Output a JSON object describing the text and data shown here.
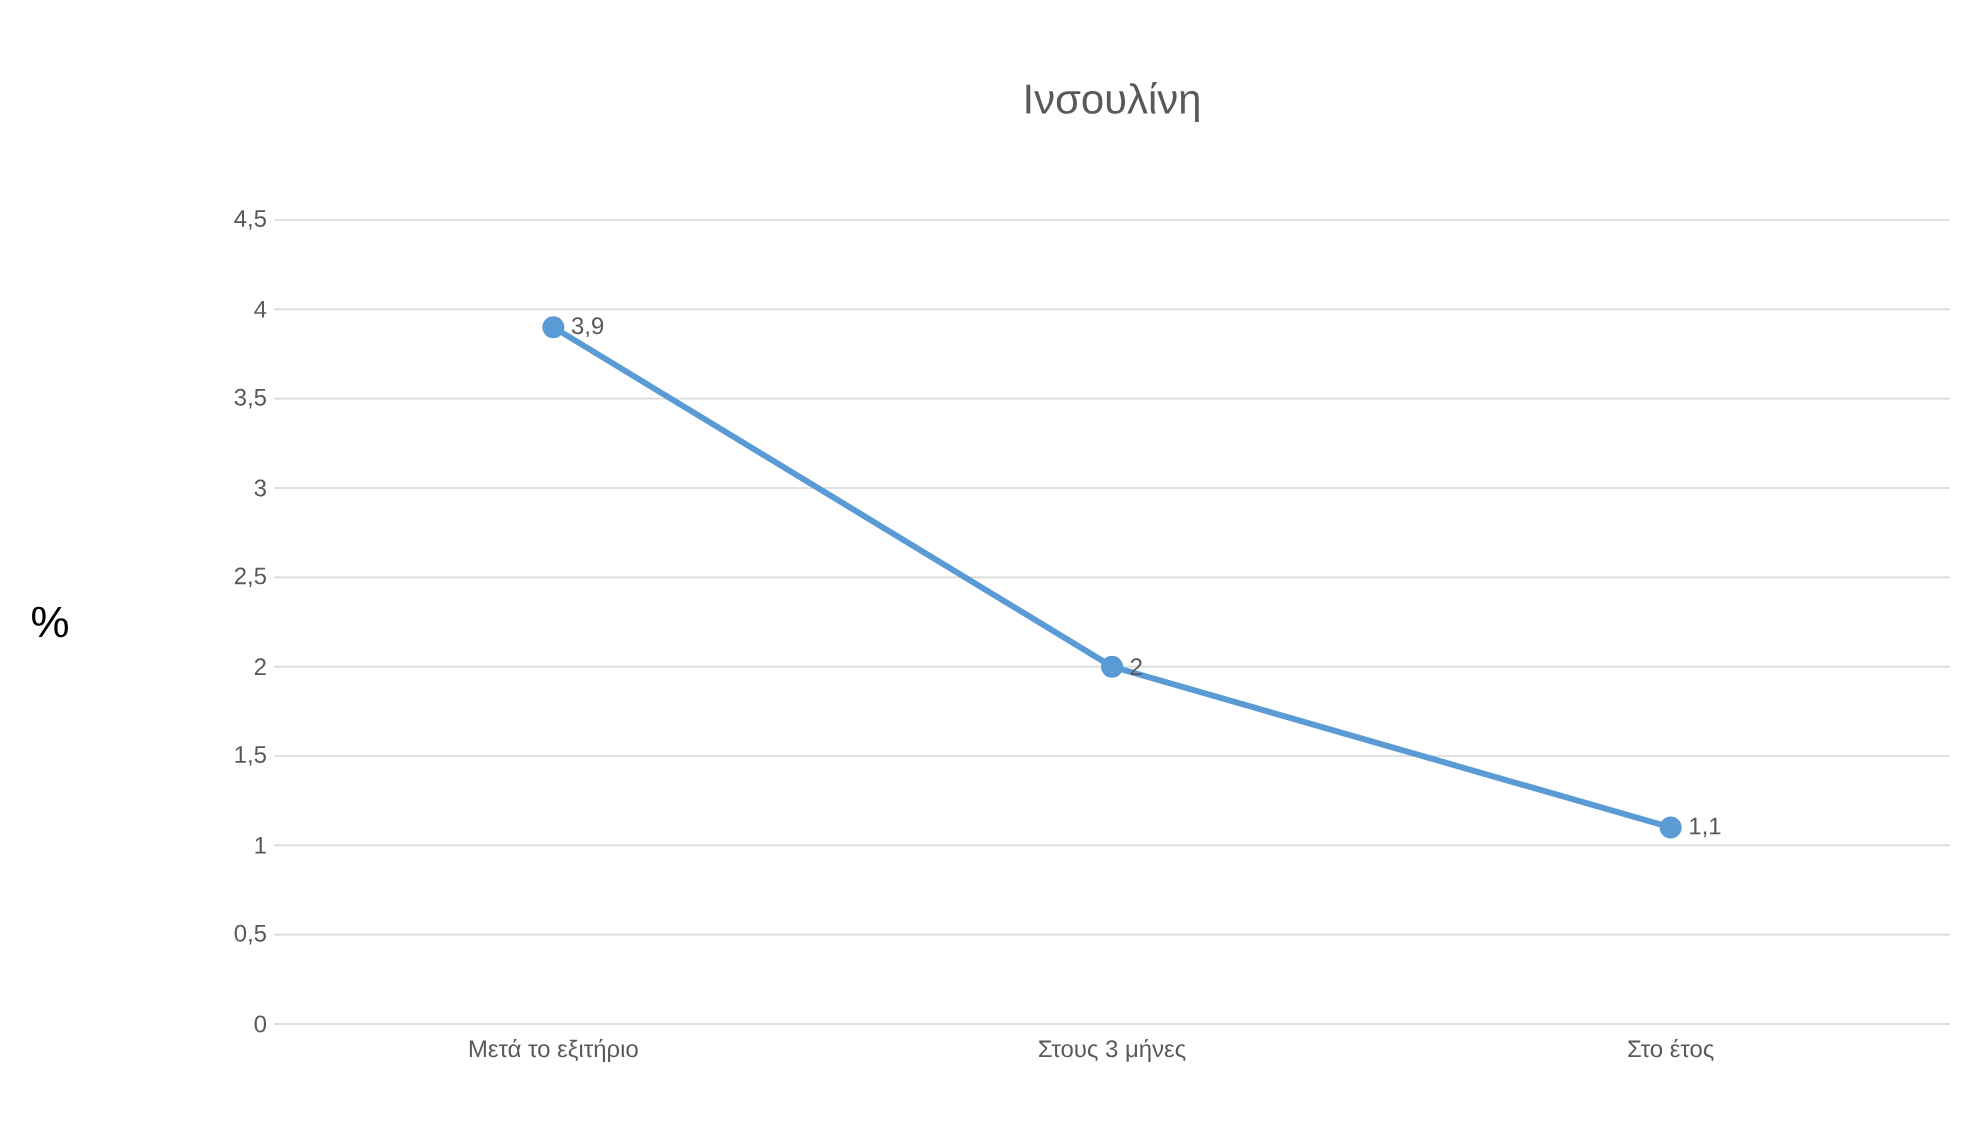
{
  "chart_data": {
    "type": "line",
    "title": "Ινσουλίνη",
    "ylabel": "%",
    "categories": [
      "Μετά το εξιτήριο",
      "Στους 3 μήνες",
      "Στο έτος"
    ],
    "series": [
      {
        "color": "#5b9bd5",
        "values": [
          3.9,
          2,
          1.1
        ],
        "value_labels": [
          "3,9",
          "2",
          "1,1"
        ]
      }
    ],
    "ylim": [
      0,
      4.5
    ],
    "yticks": [
      0,
      {
        "value": 0.5,
        "label": "0,5"
      },
      1,
      {
        "value": 1.5,
        "label": "1,5"
      },
      2,
      {
        "value": 2.5,
        "label": "2,5"
      },
      3,
      {
        "value": 3.5,
        "label": "3,5"
      },
      4,
      {
        "value": 4.5,
        "label": "4,5"
      }
    ],
    "grid": "y",
    "marker": "circle",
    "line_style": "solid"
  }
}
